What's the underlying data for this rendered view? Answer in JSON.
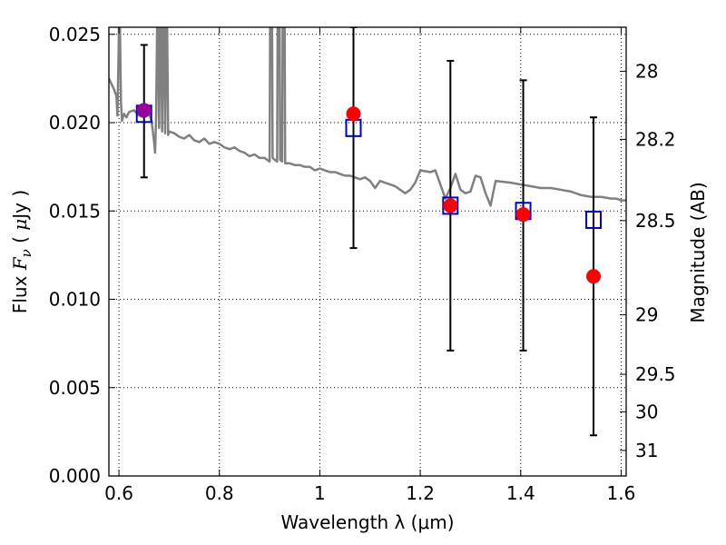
{
  "chart_data": {
    "type": "scatter",
    "title": "",
    "xlabel": "Wavelength  λ (μm)",
    "ylabel_parts": [
      "Flux  ",
      "F",
      "ν",
      "  ( ",
      "μ",
      "Jy )"
    ],
    "y2label": "Magnitude (AB)",
    "xlim": [
      0.58,
      1.61
    ],
    "ylim": [
      0.0,
      0.0254
    ],
    "grid": true,
    "x_ticks": [
      0.6,
      0.8,
      1.0,
      1.2,
      1.4,
      1.6
    ],
    "x_tick_labels": [
      "0.6",
      "0.8",
      "1",
      "1.2",
      "1.4",
      "1.6"
    ],
    "y_ticks": [
      0.0,
      0.005,
      0.01,
      0.015,
      0.02,
      0.025
    ],
    "y_tick_labels": [
      "0.000",
      "0.005",
      "0.010",
      "0.015",
      "0.020",
      "0.025"
    ],
    "y2_ticks": [
      28,
      28.2,
      28.5,
      29,
      29.5,
      30,
      31
    ],
    "y2_tick_labels": [
      "28",
      "28.2",
      "28.5",
      "29",
      "29.5",
      "30",
      "31"
    ],
    "colors": {
      "model": "#808080",
      "observed": "#ff0000",
      "synthetic": "#0000cc",
      "errorbar": "#000000",
      "overlap": "#990099"
    },
    "series": [
      {
        "kind": "line",
        "points": [
          [
            0.58,
            0.0225
          ],
          [
            0.585,
            0.0222
          ],
          [
            0.59,
            0.0219
          ],
          [
            0.595,
            0.0215
          ],
          [
            0.597,
            0.0204
          ],
          [
            0.599,
            0.0235
          ],
          [
            0.6,
            0.0254
          ],
          [
            0.602,
            0.0254
          ],
          [
            0.604,
            0.0212
          ],
          [
            0.606,
            0.0201
          ],
          [
            0.61,
            0.0205
          ],
          [
            0.615,
            0.0203
          ],
          [
            0.62,
            0.0206
          ],
          [
            0.63,
            0.0207
          ],
          [
            0.64,
            0.0204
          ],
          [
            0.65,
            0.0203
          ],
          [
            0.66,
            0.0205
          ],
          [
            0.665,
            0.0201
          ],
          [
            0.67,
            0.0189
          ],
          [
            0.672,
            0.0183
          ],
          [
            0.674,
            0.0203
          ],
          [
            0.676,
            0.0254
          ],
          [
            0.678,
            0.0254
          ],
          [
            0.68,
            0.0197
          ],
          [
            0.682,
            0.0254
          ],
          [
            0.684,
            0.0254
          ],
          [
            0.686,
            0.0195
          ],
          [
            0.688,
            0.0254
          ],
          [
            0.69,
            0.0254
          ],
          [
            0.692,
            0.0194
          ],
          [
            0.694,
            0.0254
          ],
          [
            0.696,
            0.0254
          ],
          [
            0.698,
            0.0193
          ],
          [
            0.7,
            0.0195
          ],
          [
            0.71,
            0.0194
          ],
          [
            0.72,
            0.0192
          ],
          [
            0.73,
            0.0191
          ],
          [
            0.74,
            0.0193
          ],
          [
            0.75,
            0.019
          ],
          [
            0.76,
            0.0189
          ],
          [
            0.77,
            0.0191
          ],
          [
            0.78,
            0.0188
          ],
          [
            0.79,
            0.0189
          ],
          [
            0.8,
            0.0188
          ],
          [
            0.81,
            0.0186
          ],
          [
            0.82,
            0.0185
          ],
          [
            0.83,
            0.0186
          ],
          [
            0.84,
            0.0184
          ],
          [
            0.85,
            0.0183
          ],
          [
            0.86,
            0.0181
          ],
          [
            0.87,
            0.0182
          ],
          [
            0.88,
            0.018
          ],
          [
            0.89,
            0.018
          ],
          [
            0.895,
            0.0179
          ],
          [
            0.9,
            0.0178
          ],
          [
            0.901,
            0.0254
          ],
          [
            0.905,
            0.0254
          ],
          [
            0.906,
            0.018
          ],
          [
            0.91,
            0.0179
          ],
          [
            0.915,
            0.0178
          ],
          [
            0.916,
            0.0254
          ],
          [
            0.92,
            0.0254
          ],
          [
            0.921,
            0.0179
          ],
          [
            0.925,
            0.0178
          ],
          [
            0.926,
            0.0254
          ],
          [
            0.93,
            0.0254
          ],
          [
            0.931,
            0.0177
          ],
          [
            0.94,
            0.0177
          ],
          [
            0.95,
            0.0176
          ],
          [
            0.96,
            0.0176
          ],
          [
            0.97,
            0.0175
          ],
          [
            0.98,
            0.0175
          ],
          [
            0.99,
            0.0173
          ],
          [
            1.0,
            0.0174
          ],
          [
            1.01,
            0.0173
          ],
          [
            1.02,
            0.0172
          ],
          [
            1.03,
            0.0172
          ],
          [
            1.04,
            0.0171
          ],
          [
            1.05,
            0.017
          ],
          [
            1.06,
            0.017
          ],
          [
            1.07,
            0.0169
          ],
          [
            1.08,
            0.0168
          ],
          [
            1.09,
            0.0169
          ],
          [
            1.1,
            0.0167
          ],
          [
            1.11,
            0.0163
          ],
          [
            1.12,
            0.0167
          ],
          [
            1.13,
            0.0166
          ],
          [
            1.14,
            0.0165
          ],
          [
            1.15,
            0.0164
          ],
          [
            1.16,
            0.0162
          ],
          [
            1.17,
            0.016
          ],
          [
            1.18,
            0.0162
          ],
          [
            1.19,
            0.0166
          ],
          [
            1.2,
            0.0173
          ],
          [
            1.22,
            0.0172
          ],
          [
            1.23,
            0.0173
          ],
          [
            1.24,
            0.0165
          ],
          [
            1.25,
            0.0157
          ],
          [
            1.26,
            0.0163
          ],
          [
            1.27,
            0.0171
          ],
          [
            1.28,
            0.0162
          ],
          [
            1.29,
            0.016
          ],
          [
            1.3,
            0.0161
          ],
          [
            1.31,
            0.017
          ],
          [
            1.32,
            0.0169
          ],
          [
            1.33,
            0.016
          ],
          [
            1.34,
            0.0153
          ],
          [
            1.35,
            0.0167
          ],
          [
            1.38,
            0.0166
          ],
          [
            1.4,
            0.0165
          ],
          [
            1.42,
            0.0164
          ],
          [
            1.44,
            0.0163
          ],
          [
            1.46,
            0.0163
          ],
          [
            1.48,
            0.0162
          ],
          [
            1.5,
            0.0161
          ],
          [
            1.52,
            0.0159
          ],
          [
            1.54,
            0.0158
          ],
          [
            1.56,
            0.0158
          ],
          [
            1.58,
            0.0157
          ],
          [
            1.59,
            0.0157
          ],
          [
            1.6,
            0.0156
          ],
          [
            1.61,
            0.0156
          ]
        ]
      },
      {
        "kind": "errorbar",
        "points": [
          {
            "x": 0.65,
            "y": 0.0207,
            "yerr_low": 0.0169,
            "yerr_high": 0.0244
          },
          {
            "x": 1.067,
            "y": 0.0205,
            "yerr_low": 0.0129,
            "yerr_high": 0.0254
          },
          {
            "x": 1.26,
            "y": 0.0153,
            "yerr_low": 0.0071,
            "yerr_high": 0.0235
          },
          {
            "x": 1.405,
            "y": 0.0148,
            "yerr_low": 0.0071,
            "yerr_high": 0.0224
          },
          {
            "x": 1.545,
            "y": 0.0113,
            "yerr_low": 0.0023,
            "yerr_high": 0.0203
          }
        ]
      },
      {
        "kind": "scatter-square",
        "points": [
          {
            "x": 0.65,
            "y": 0.0205
          },
          {
            "x": 1.067,
            "y": 0.0197
          },
          {
            "x": 1.26,
            "y": 0.0153
          },
          {
            "x": 1.405,
            "y": 0.015
          },
          {
            "x": 1.545,
            "y": 0.0145
          }
        ]
      }
    ]
  }
}
